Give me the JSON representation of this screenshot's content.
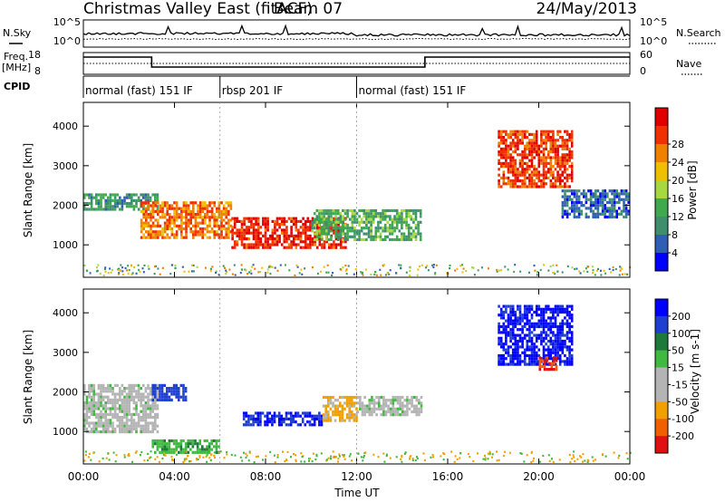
{
  "header": {
    "station": "Christmas Valley East (fitACF)",
    "beam": "Beam 07",
    "date": "24/May/2013"
  },
  "summary_labels": {
    "nsky": "N.Sky",
    "nsearch": "N.Search",
    "freq_l1": "Freq.",
    "freq_l2": "[MHz]",
    "nave": "Nave",
    "cpid": "CPID",
    "left_top_tick": "10^5",
    "left_bottom_tick": "10^0",
    "right_top_tick": "10^5",
    "right_bottom_tick": "10^0",
    "freq_ticks": [
      "18",
      "8"
    ],
    "nave_ticks": [
      "60",
      "0"
    ]
  },
  "cpid_segments": [
    {
      "label": "normal (fast) 151 IF",
      "start_hour": 0
    },
    {
      "label": "rbsp 201 IF",
      "start_hour": 6
    },
    {
      "label": "normal (fast) 151 IF",
      "start_hour": 12
    }
  ],
  "colors": {
    "power_scale": [
      "#0000ff",
      "#2f5fb4",
      "#3f8f6f",
      "#3fa94f",
      "#a8d840",
      "#f0c000",
      "#f08000",
      "#f03000",
      "#e00000"
    ],
    "velocity_scale": [
      "#0000ff",
      "#1e3fd0",
      "#1e7a3a",
      "#3fb93f",
      "#b4b4b4",
      "#b4b4b4",
      "#f0a000",
      "#f06000",
      "#e01010"
    ],
    "ground_scatter": "#b4b4b4"
  },
  "chart_data": [
    {
      "type": "heatmap",
      "name": "power",
      "xlabel": "",
      "ylabel": "Slant Range [km]",
      "xlim": [
        0,
        24
      ],
      "ylim": [
        180,
        4600
      ],
      "yticks": [
        1000,
        2000,
        3000,
        4000
      ],
      "colorbar": {
        "label": "Power [dB]",
        "range": [
          0,
          32
        ],
        "ticks": [
          4,
          8,
          12,
          16,
          20,
          24,
          28
        ]
      },
      "features": [
        {
          "hours": [
            0,
            3.3
          ],
          "range_km": [
            1900,
            2300
          ],
          "value_db": 10
        },
        {
          "hours": [
            2.5,
            6.5
          ],
          "range_km": [
            1200,
            2100
          ],
          "value_db": 24
        },
        {
          "hours": [
            6.5,
            11.5
          ],
          "range_km": [
            900,
            1700
          ],
          "value_db": 28
        },
        {
          "hours": [
            10,
            14.8
          ],
          "range_km": [
            1100,
            1900
          ],
          "value_db": 12
        },
        {
          "hours": [
            18.2,
            21.5
          ],
          "range_km": [
            2500,
            3900
          ],
          "value_db": 27
        },
        {
          "hours": [
            21,
            24
          ],
          "range_km": [
            1700,
            2400
          ],
          "value_db": 6
        }
      ]
    },
    {
      "type": "heatmap",
      "name": "velocity",
      "xlabel": "Time UT",
      "ylabel": "Slant Range [km]",
      "xlim": [
        0,
        24
      ],
      "ylim": [
        180,
        4600
      ],
      "yticks": [
        1000,
        2000,
        3000,
        4000
      ],
      "xtick_labels": [
        "00:00",
        "04:00",
        "08:00",
        "12:00",
        "16:00",
        "20:00",
        "00:00"
      ],
      "colorbar": {
        "label": "Velocity [m s-1]",
        "range": [
          -250,
          250
        ],
        "ticks": [
          200,
          100,
          50,
          15,
          -15,
          -50,
          -100,
          -200
        ]
      },
      "features": [
        {
          "hours": [
            0,
            3.3
          ],
          "range_km": [
            1000,
            2200
          ],
          "value_ms": 0
        },
        {
          "hours": [
            3,
            4.5
          ],
          "range_km": [
            1800,
            2200
          ],
          "value_ms": 180
        },
        {
          "hours": [
            3,
            6
          ],
          "range_km": [
            500,
            800
          ],
          "value_ms": 40
        },
        {
          "hours": [
            7,
            10.5
          ],
          "range_km": [
            1200,
            1500
          ],
          "value_ms": 200
        },
        {
          "hours": [
            10.5,
            12
          ],
          "range_km": [
            1300,
            1900
          ],
          "value_ms": -60
        },
        {
          "hours": [
            12,
            14.8
          ],
          "range_km": [
            1400,
            1900
          ],
          "value_ms": 0
        },
        {
          "hours": [
            18.2,
            21.5
          ],
          "range_km": [
            2700,
            4200
          ],
          "value_ms": 210
        },
        {
          "hours": [
            20,
            20.8
          ],
          "range_km": [
            2600,
            2900
          ],
          "value_ms": -200
        }
      ]
    }
  ]
}
